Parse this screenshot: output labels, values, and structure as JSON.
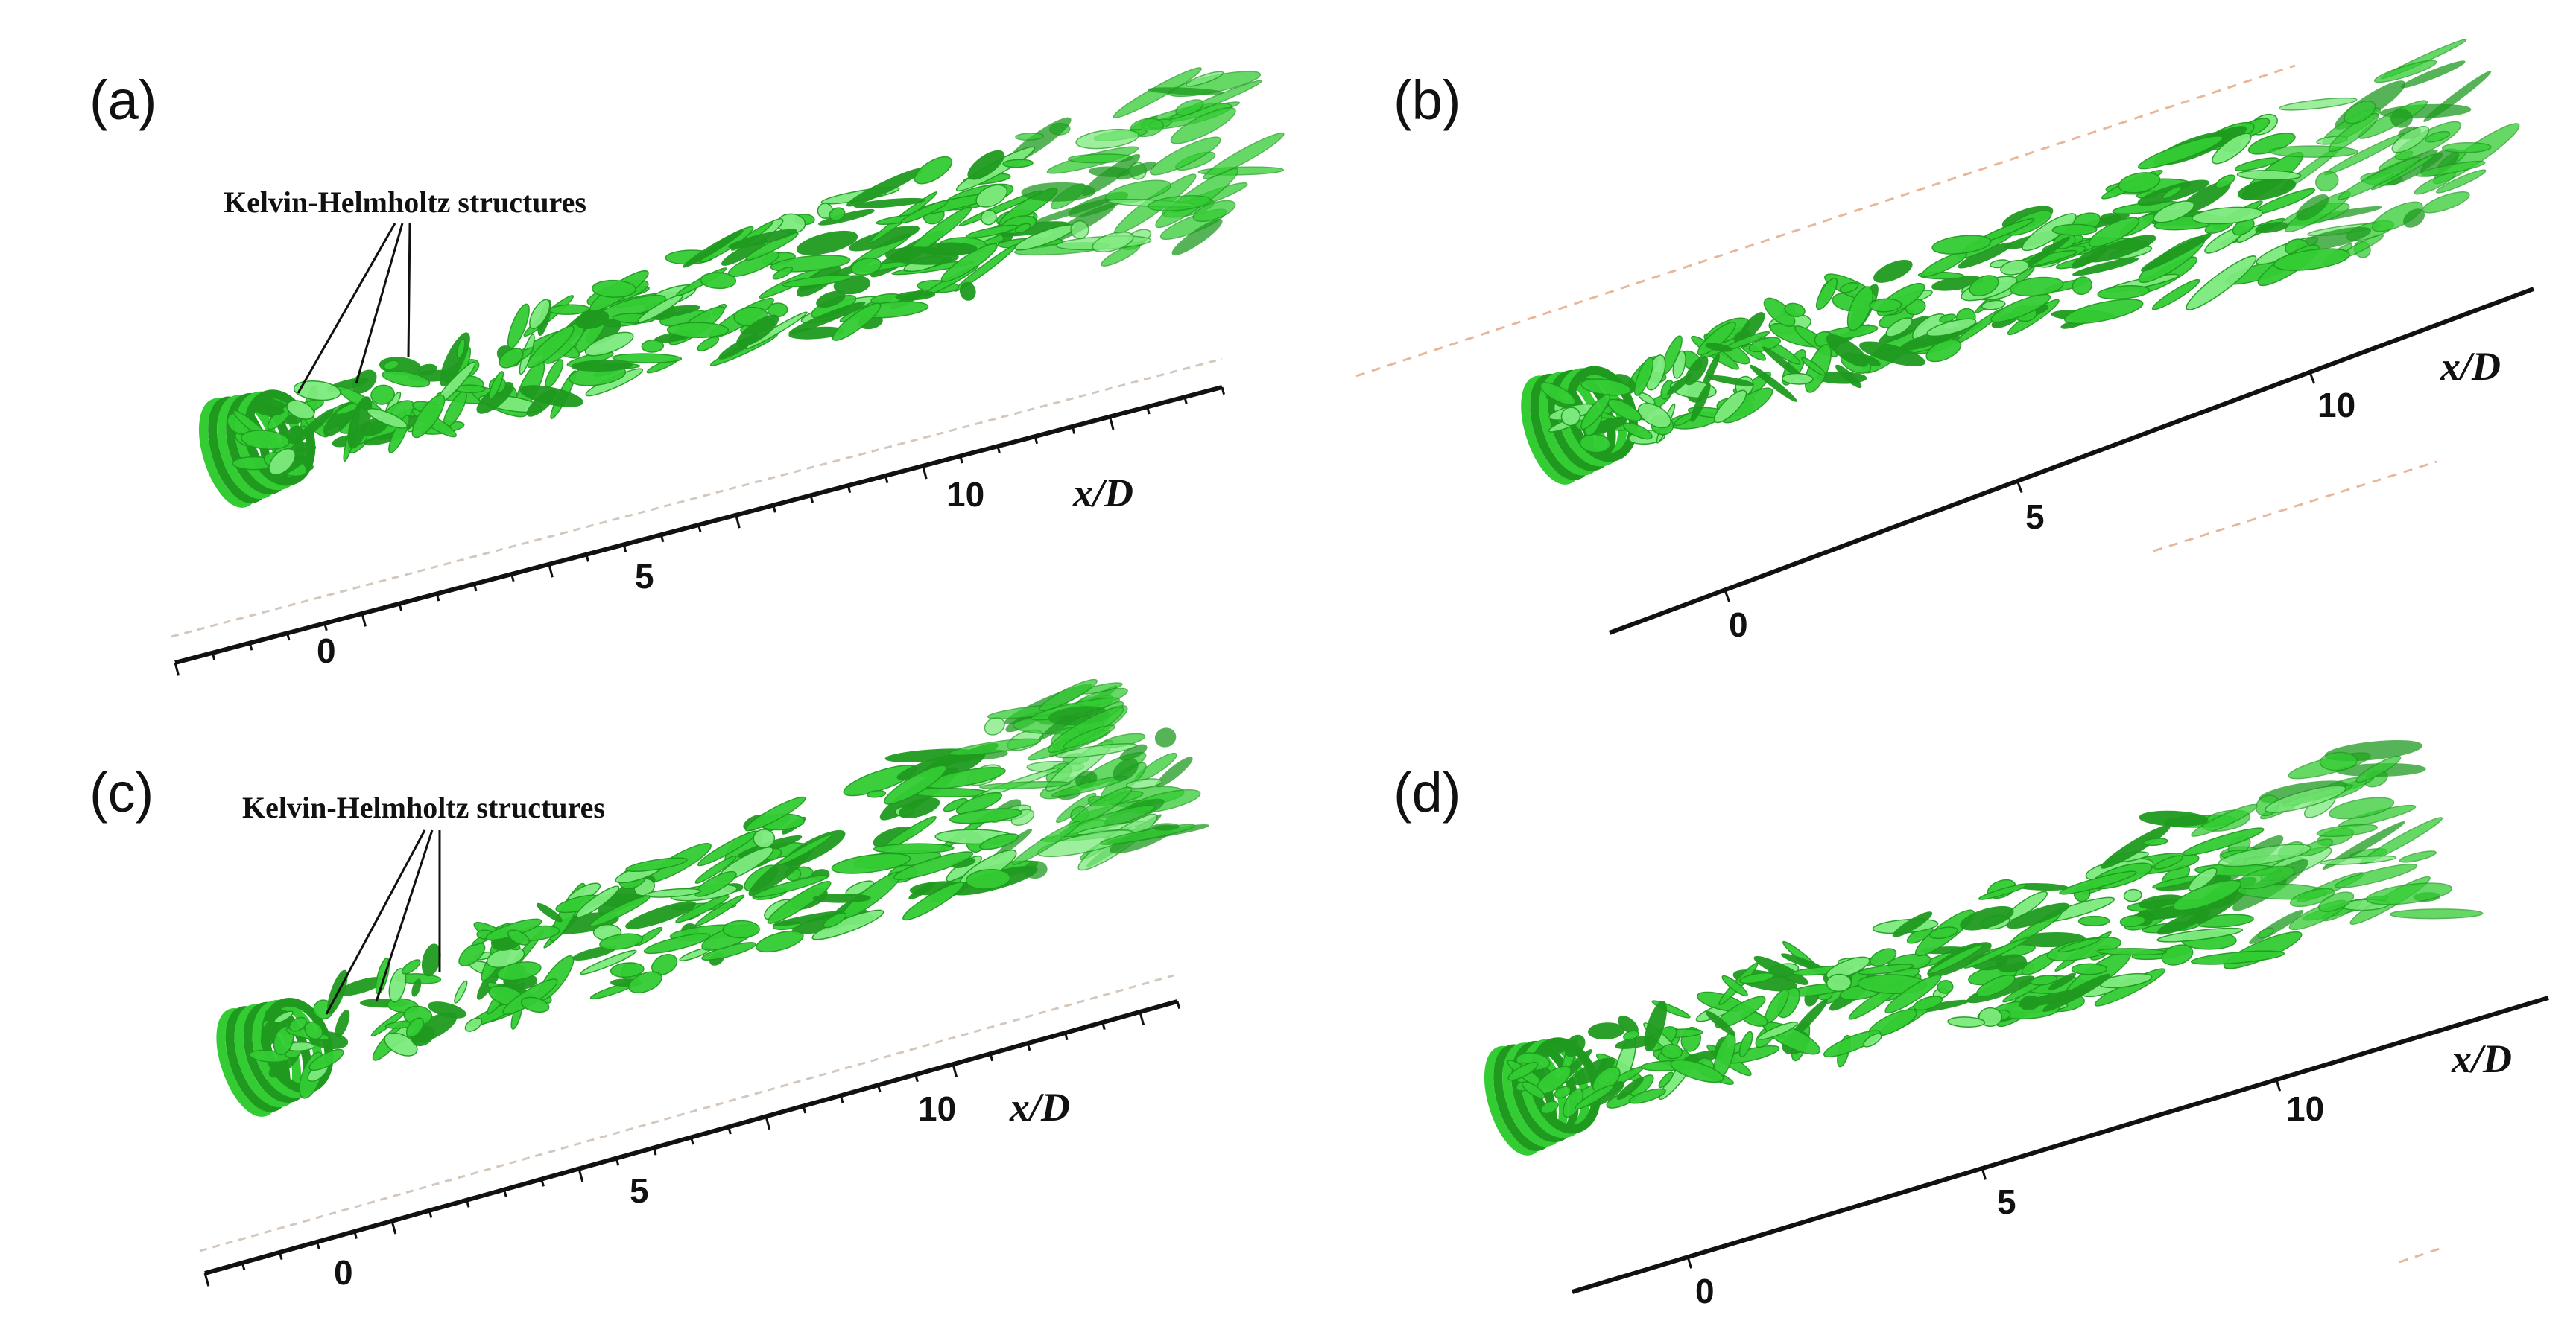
{
  "figure": {
    "panels": [
      {
        "label": "(a)",
        "axis_label": "x/D",
        "ticks": [
          "0",
          "5",
          "10"
        ],
        "annotation": "Kelvin-Helmholtz structures"
      },
      {
        "label": "(b)",
        "axis_label": "x/D",
        "ticks": [
          "0",
          "5",
          "10"
        ],
        "annotation": ""
      },
      {
        "label": "(c)",
        "axis_label": "x/D",
        "ticks": [
          "0",
          "5",
          "10"
        ],
        "annotation": "Kelvin-Helmholtz structures"
      },
      {
        "label": "(d)",
        "axis_label": "x/D",
        "ticks": [
          "0",
          "5",
          "10"
        ],
        "annotation": ""
      }
    ],
    "colors": {
      "vortex_fill": "#33cc33",
      "vortex_dark": "#1f9a1f",
      "vortex_light": "#7dea7d",
      "axis": "#111111",
      "dashed_guide": "#e8b79a"
    }
  }
}
